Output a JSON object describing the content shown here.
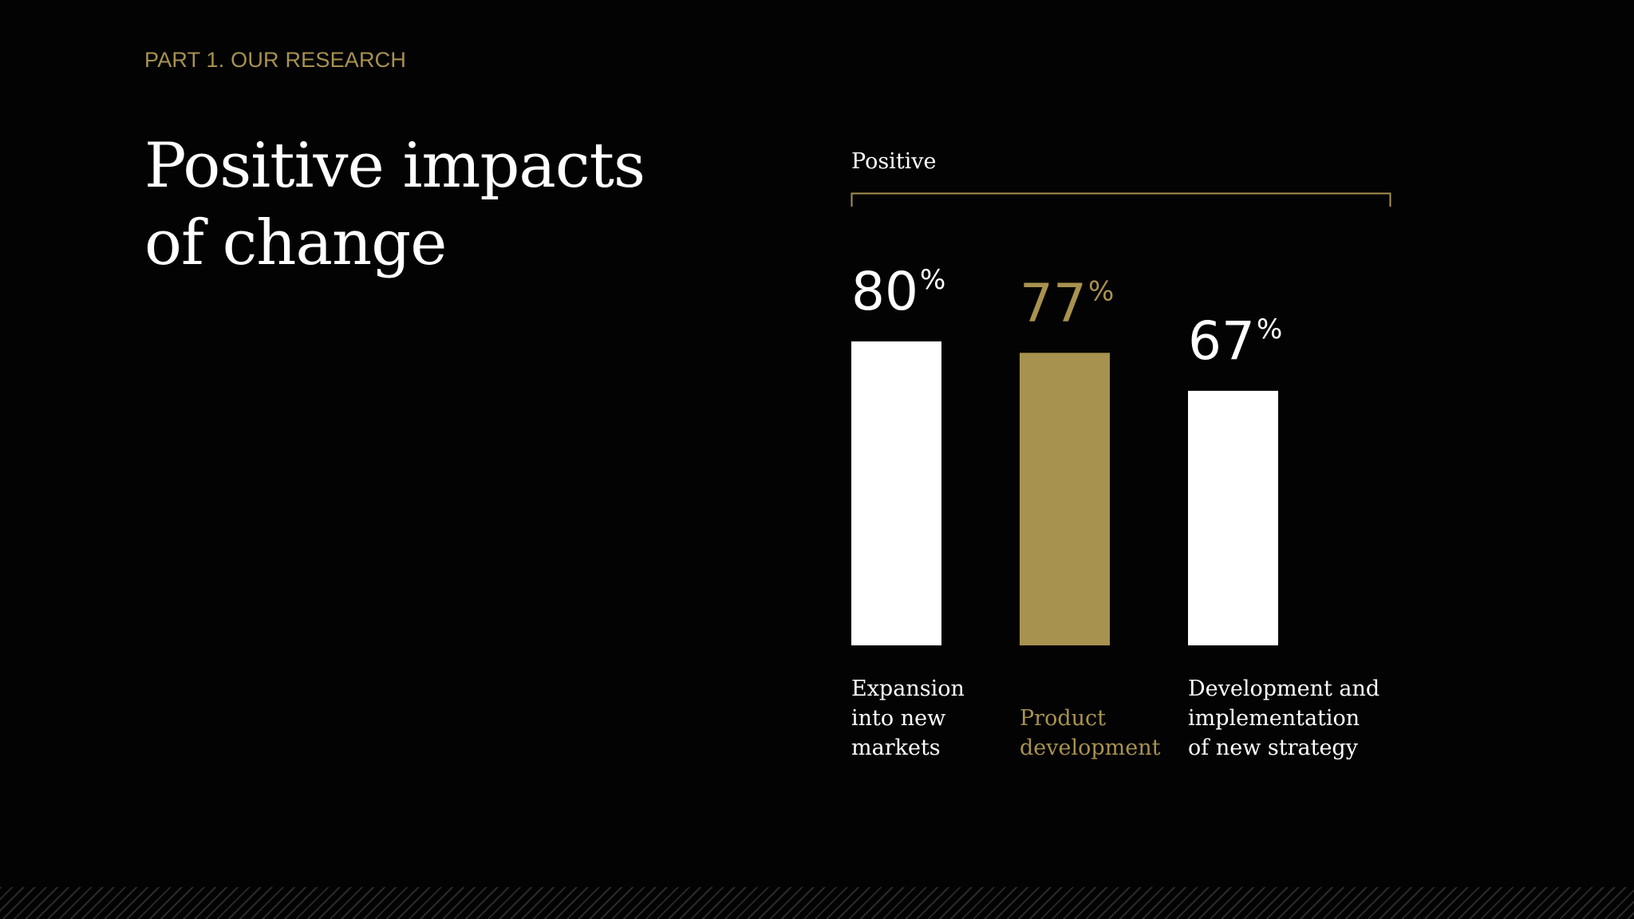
{
  "eyebrow": "PART 1. OUR RESEARCH",
  "headline_lines": [
    "Positive impacts",
    "of change"
  ],
  "colors": {
    "background": "#030304",
    "white": "#ffffff",
    "gold": "#a8924f"
  },
  "chart_data": {
    "type": "bar",
    "title": "Positive",
    "categories": [
      [
        "Expansion",
        "into new",
        "markets"
      ],
      [
        "Product",
        "development"
      ],
      [
        "Development and",
        "implementation",
        "of new strategy"
      ]
    ],
    "values": [
      80,
      77,
      67
    ],
    "value_suffix": "%",
    "ylim": [
      0,
      100
    ],
    "highlight_index": 1,
    "legend": "none",
    "grid": false
  }
}
